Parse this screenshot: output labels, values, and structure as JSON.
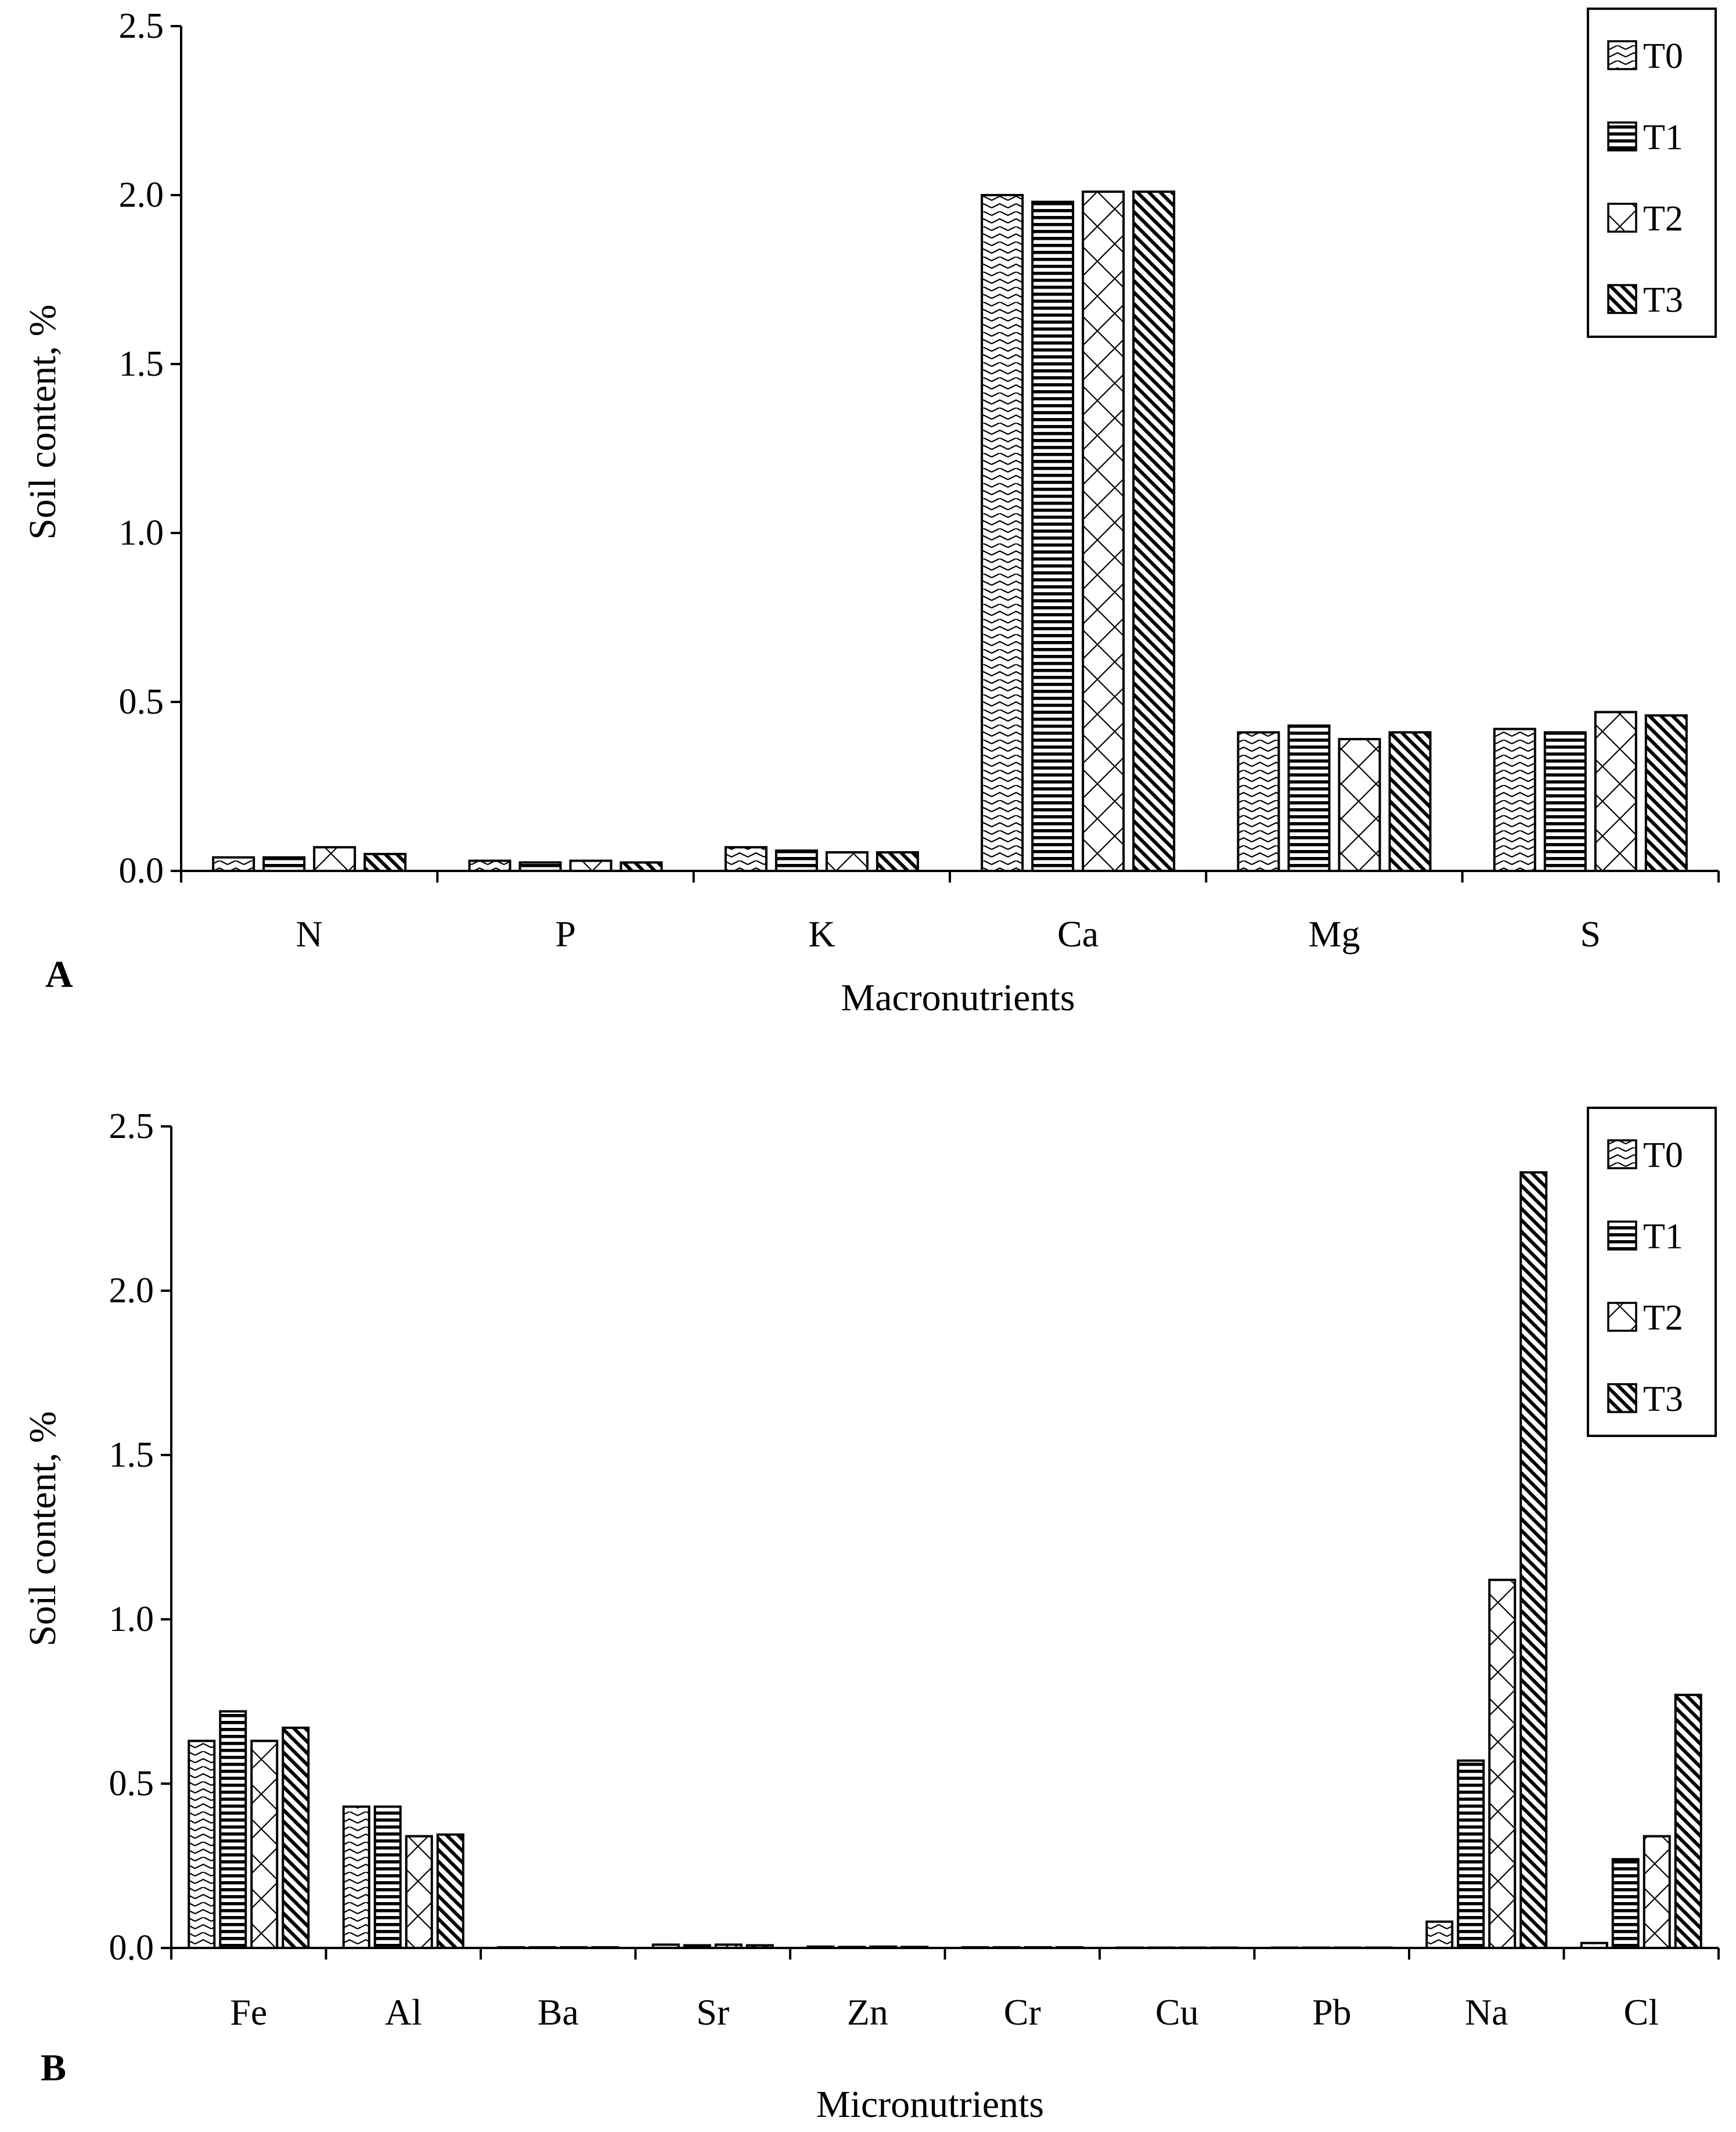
{
  "chart_data": [
    {
      "type": "bar",
      "panel_label": "A",
      "xlabel": "Macronutrients",
      "ylabel": "Soil content, %",
      "ylim": [
        0,
        2.5
      ],
      "yticks": [
        "0.0",
        "0.5",
        "1.0",
        "1.5",
        "2.0",
        "2.5"
      ],
      "categories": [
        "N",
        "P",
        "K",
        "Ca",
        "Mg",
        "S"
      ],
      "legend_position": "top-right",
      "series": [
        {
          "name": "T0",
          "values": [
            0.04,
            0.03,
            0.07,
            2.0,
            0.41,
            0.42
          ]
        },
        {
          "name": "T1",
          "values": [
            0.04,
            0.025,
            0.06,
            1.98,
            0.43,
            0.41
          ]
        },
        {
          "name": "T2",
          "values": [
            0.07,
            0.03,
            0.055,
            2.01,
            0.39,
            0.47
          ]
        },
        {
          "name": "T3",
          "values": [
            0.05,
            0.025,
            0.055,
            2.01,
            0.41,
            0.46
          ]
        }
      ]
    },
    {
      "type": "bar",
      "panel_label": "B",
      "xlabel": "Micronutrients",
      "ylabel": "Soil content, %",
      "ylim": [
        0,
        2.5
      ],
      "yticks": [
        "0.0",
        "0.5",
        "1.0",
        "1.5",
        "2.0",
        "2.5"
      ],
      "categories": [
        "Fe",
        "Al",
        "Ba",
        "Sr",
        "Zn",
        "Cr",
        "Cu",
        "Pb",
        "Na",
        "Cl"
      ],
      "legend_position": "top-right",
      "series": [
        {
          "name": "T0",
          "values": [
            0.63,
            0.43,
            0.002,
            0.01,
            0.004,
            0.002,
            0.001,
            0.001,
            0.08,
            0.015
          ]
        },
        {
          "name": "T1",
          "values": [
            0.72,
            0.43,
            0.002,
            0.008,
            0.003,
            0.002,
            0.001,
            0.001,
            0.57,
            0.27
          ]
        },
        {
          "name": "T2",
          "values": [
            0.63,
            0.34,
            0.002,
            0.01,
            0.004,
            0.002,
            0.001,
            0.001,
            1.12,
            0.34
          ]
        },
        {
          "name": "T3",
          "values": [
            0.67,
            0.345,
            0.002,
            0.008,
            0.003,
            0.002,
            0.001,
            0.001,
            2.36,
            0.77
          ]
        }
      ]
    }
  ]
}
